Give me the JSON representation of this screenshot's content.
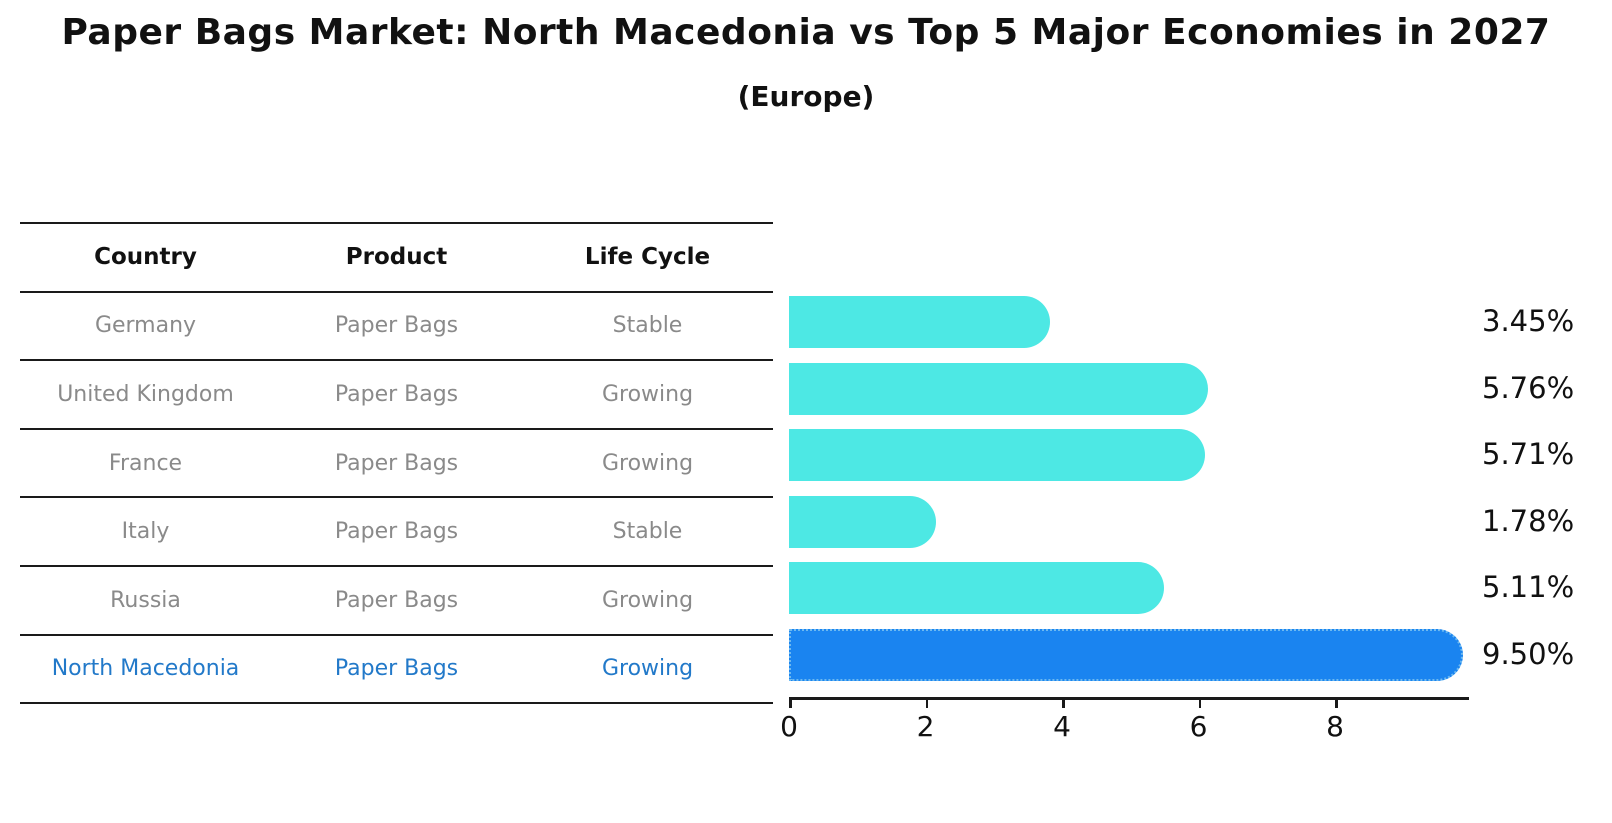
{
  "chart": {
    "title": "Paper Bags Market: North Macedonia vs Top 5 Major Economies in 2027",
    "subtitle": "(Europe)"
  },
  "table": {
    "headers": [
      "Country",
      "Product",
      "Life Cycle"
    ],
    "rows": [
      {
        "country": "Germany",
        "product": "Paper Bags",
        "life_cycle": "Stable",
        "highlight": false
      },
      {
        "country": "United Kingdom",
        "product": "Paper Bags",
        "life_cycle": "Growing",
        "highlight": false
      },
      {
        "country": "France",
        "product": "Paper Bags",
        "life_cycle": "Growing",
        "highlight": false
      },
      {
        "country": "Italy",
        "product": "Paper Bags",
        "life_cycle": "Stable",
        "highlight": false
      },
      {
        "country": "Russia",
        "product": "Paper Bags",
        "life_cycle": "Growing",
        "highlight": false
      },
      {
        "country": "North Macedonia",
        "product": "Paper Bags",
        "life_cycle": "Growing",
        "highlight": true
      }
    ]
  },
  "chart_data": {
    "type": "bar",
    "orientation": "horizontal",
    "title": "Paper Bags Market: North Macedonia vs Top 5 Major Economies in 2027 (Europe)",
    "categories": [
      "Germany",
      "United Kingdom",
      "France",
      "Italy",
      "Russia",
      "North Macedonia"
    ],
    "values": [
      3.45,
      5.76,
      5.71,
      1.78,
      5.11,
      9.5
    ],
    "value_labels": [
      "3.45%",
      "5.76%",
      "5.71%",
      "1.78%",
      "5.11%",
      "9.50%"
    ],
    "x_ticks": [
      0,
      2,
      4,
      6,
      8
    ],
    "xlim": [
      0,
      9.95
    ],
    "grid": false,
    "legend": "none",
    "bar_color": "#4de8e4",
    "highlight_color": "#1a84f0",
    "highlight_border_color": "#6db9f0",
    "highlight_index": 5,
    "highlight_text_color": "#2279c9"
  }
}
